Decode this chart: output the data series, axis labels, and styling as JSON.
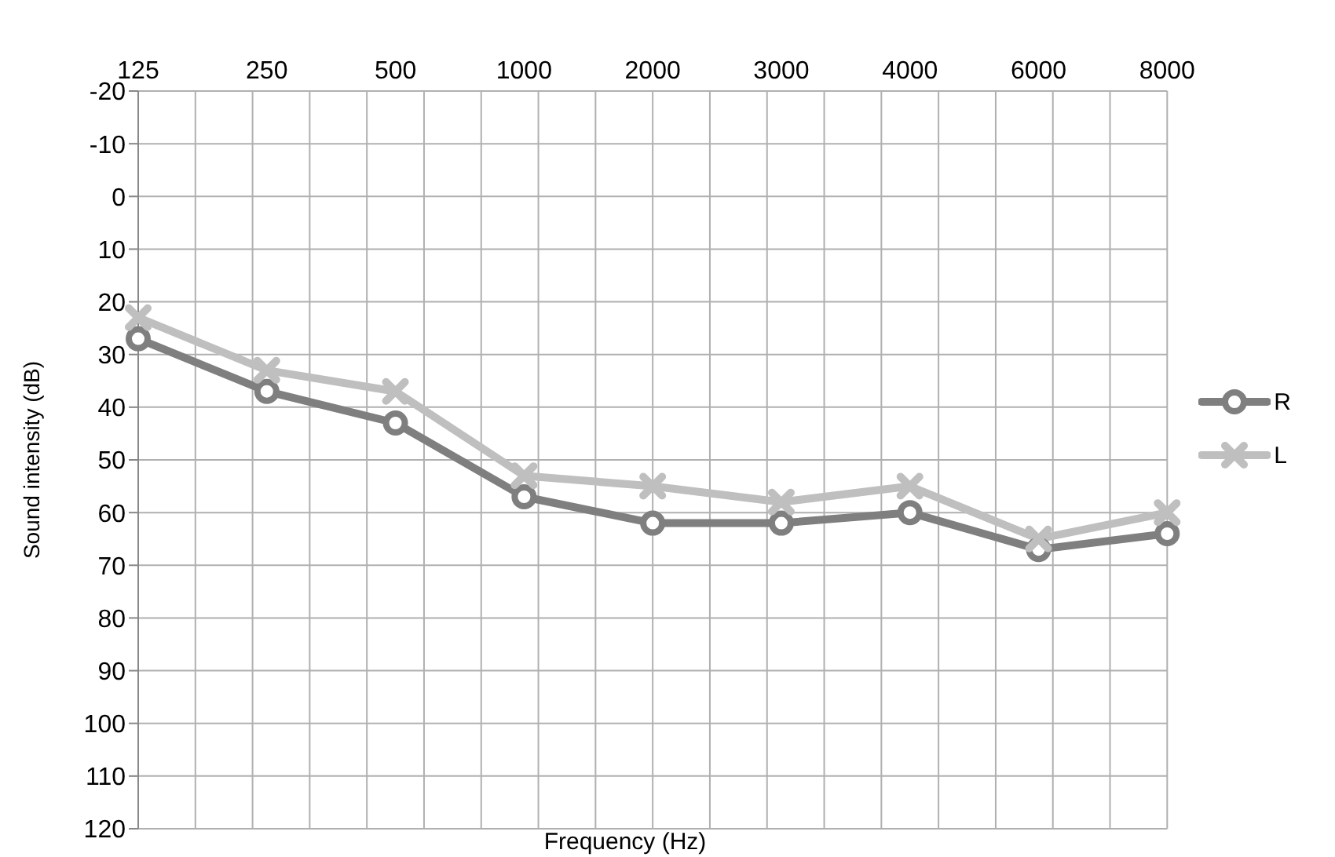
{
  "chart_data": {
    "type": "line",
    "xlabel": "Frequency (Hz)",
    "ylabel": "Sound intensity (dB)",
    "categories": [
      "125",
      "250",
      "500",
      "1000",
      "2000",
      "3000",
      "4000",
      "6000",
      "8000"
    ],
    "series": [
      {
        "name": "R",
        "color": "#7f7f7f",
        "marker": "circle",
        "values": [
          27,
          37,
          43,
          57,
          62,
          62,
          60,
          67,
          64
        ]
      },
      {
        "name": "L",
        "color": "#bfbfbf",
        "marker": "cross",
        "values": [
          23,
          33,
          37,
          53,
          55,
          58,
          55,
          65,
          60
        ]
      }
    ],
    "ylim": [
      120,
      -20
    ],
    "yticks": [
      -20,
      -10,
      0,
      10,
      20,
      30,
      40,
      50,
      60,
      70,
      80,
      90,
      100,
      110,
      120
    ],
    "grid": true,
    "legend": "right"
  }
}
